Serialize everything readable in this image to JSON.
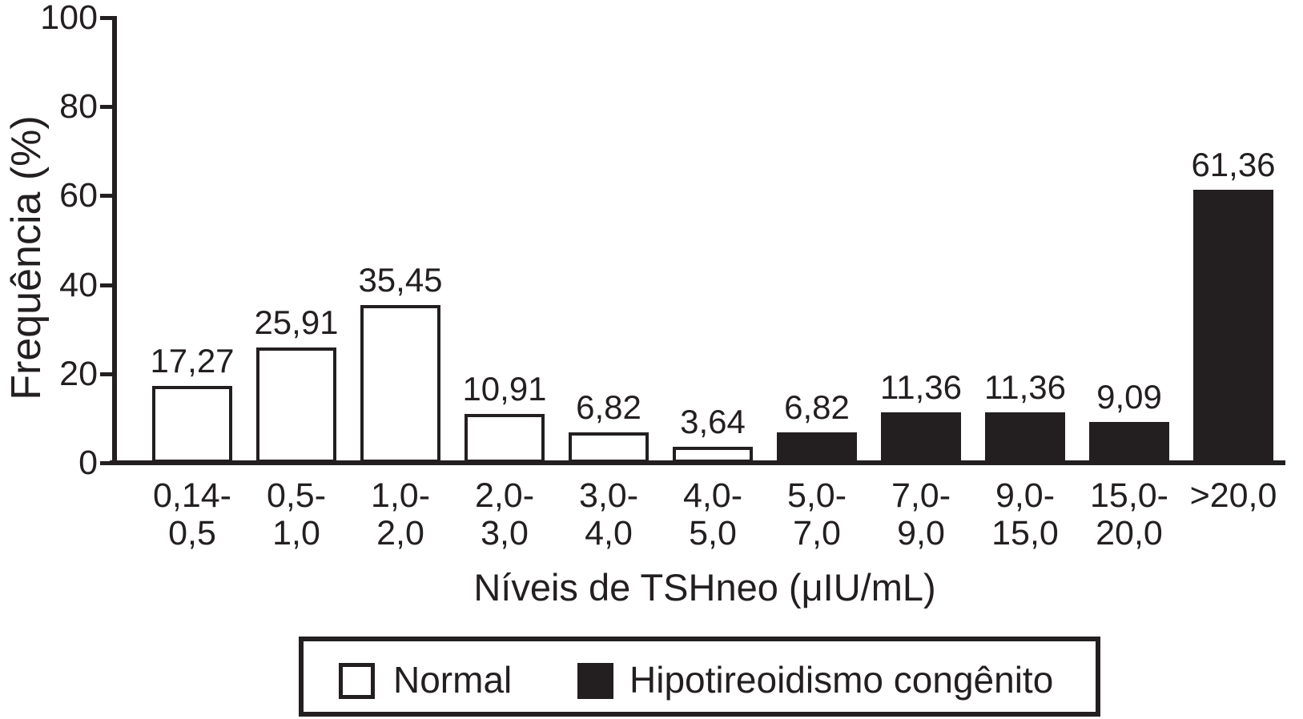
{
  "figure": {
    "background": "#ffffff",
    "ink_color": "#231f20"
  },
  "chart_data": {
    "type": "bar",
    "title": "",
    "ylabel": "Frequência (%)",
    "xlabel": "Níveis de TSHneo (μIU/mL)",
    "ylim": [
      0,
      100
    ],
    "yticks": [
      "0",
      "20",
      "40",
      "60",
      "80",
      "100"
    ],
    "grid": false,
    "legend_position": "bottom",
    "categories": [
      "0,14-0,5",
      "0,5-1,0",
      "1,0-2,0",
      "2,0-3,0",
      "3,0-4,0",
      "4,0-5,0",
      "5,0-7,0",
      "7,0-9,0",
      "9,0-15,0",
      "15,0-20,0",
      ">20,0"
    ],
    "category_labels": [
      [
        "0,14-",
        "0,5"
      ],
      [
        "0,5-",
        "1,0"
      ],
      [
        "1,0-",
        "2,0"
      ],
      [
        "2,0-",
        "3,0"
      ],
      [
        "3,0-",
        "4,0"
      ],
      [
        "4,0-",
        "5,0"
      ],
      [
        "5,0-",
        "7,0"
      ],
      [
        "7,0-",
        "9,0"
      ],
      [
        "9,0-",
        "15,0"
      ],
      [
        "15,0-",
        "20,0"
      ],
      [
        ">20,0"
      ]
    ],
    "values": [
      17.27,
      25.91,
      35.45,
      10.91,
      6.82,
      3.64,
      6.82,
      11.36,
      11.36,
      9.09,
      61.36
    ],
    "value_labels": [
      "17,27",
      "25,91",
      "35,45",
      "10,91",
      "6,82",
      "3,64",
      "6,82",
      "11,36",
      "11,36",
      "9,09",
      "61,36"
    ],
    "bar_series": [
      "Normal",
      "Normal",
      "Normal",
      "Normal",
      "Normal",
      "Normal",
      "Hipotireoidismo congênito",
      "Hipotireoidismo congênito",
      "Hipotireoidismo congênito",
      "Hipotireoidismo congênito",
      "Hipotireoidismo congênito"
    ],
    "series": [
      {
        "name": "Normal",
        "fill": "#ffffff"
      },
      {
        "name": "Hipotireoidismo congênito",
        "fill": "#231f20"
      }
    ]
  },
  "legend": {
    "items": [
      {
        "label": "Normal",
        "swatch": "white"
      },
      {
        "label": "Hipotireoidismo congênito",
        "swatch": "black"
      }
    ]
  }
}
